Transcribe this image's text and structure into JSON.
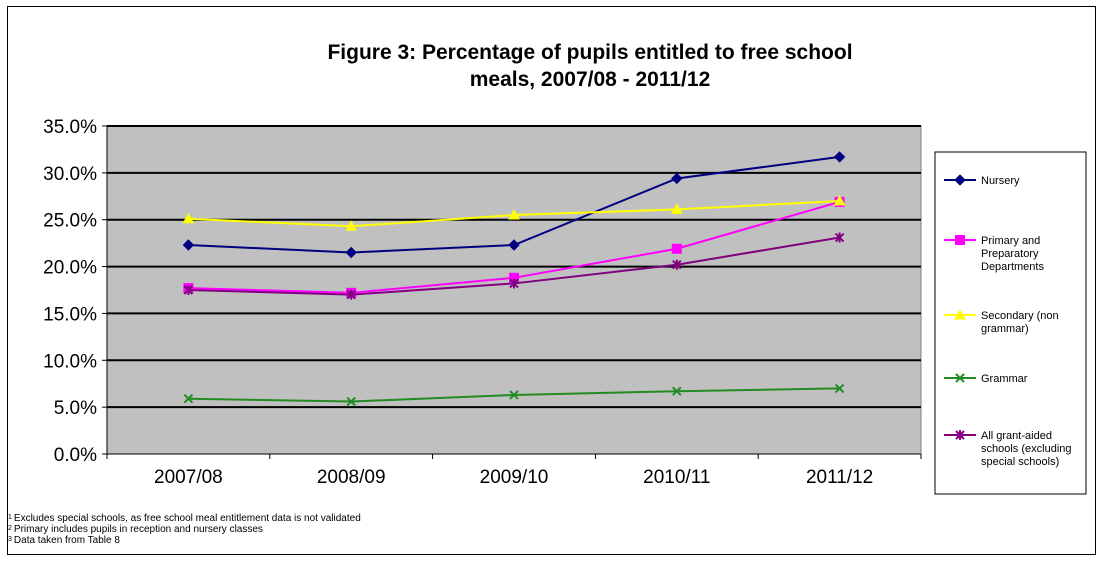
{
  "chart_data": {
    "type": "line",
    "title_lines": [
      "Figure 3: Percentage of pupils entitled to free school",
      "meals, 2007/08 - 2011/12"
    ],
    "categories": [
      "2007/08",
      "2008/09",
      "2009/10",
      "2010/11",
      "2011/12"
    ],
    "ylim": [
      0,
      35
    ],
    "ytick_values": [
      0,
      5,
      10,
      15,
      20,
      25,
      30,
      35
    ],
    "ytick_labels": [
      "0.0%",
      "5.0%",
      "10.0%",
      "15.0%",
      "20.0%",
      "25.0%",
      "30.0%",
      "35.0%"
    ],
    "grid": true,
    "plot_background": "#c0c0c0",
    "legend_position": "right",
    "series": [
      {
        "name": "Nursery",
        "legend_lines": [
          "Nursery"
        ],
        "color": "#000080",
        "marker": "diamond",
        "values": [
          22.3,
          21.5,
          22.3,
          29.4,
          31.7
        ]
      },
      {
        "name": "Primary and Preparatory Departments",
        "legend_lines": [
          "Primary and",
          "Preparatory",
          "Departments"
        ],
        "color": "#ff00ff",
        "marker": "square",
        "values": [
          17.7,
          17.2,
          18.8,
          21.9,
          26.9
        ]
      },
      {
        "name": "Secondary (non grammar)",
        "legend_lines": [
          "Secondary (non",
          "grammar)"
        ],
        "color": "#ffff00",
        "marker": "triangle",
        "values": [
          25.1,
          24.3,
          25.5,
          26.1,
          27.0
        ]
      },
      {
        "name": "Grammar",
        "legend_lines": [
          "Grammar"
        ],
        "color": "#228b22",
        "marker": "x",
        "values": [
          5.9,
          5.6,
          6.3,
          6.7,
          7.0
        ]
      },
      {
        "name": "All grant-aided schools (excluding special schools)",
        "legend_lines": [
          "All grant-aided",
          "schools (excluding",
          "special schools)"
        ],
        "color": "#800080",
        "marker": "star",
        "values": [
          17.5,
          17.0,
          18.2,
          20.2,
          23.1
        ]
      }
    ]
  },
  "footnotes": [
    {
      "mark": "1",
      "text": "Excludes special schools, as free school meal entitlement data is not validated"
    },
    {
      "mark": "2",
      "text": "Primary includes pupils in reception and nursery classes"
    },
    {
      "mark": "3",
      "text": "Data taken from Table 8"
    }
  ]
}
